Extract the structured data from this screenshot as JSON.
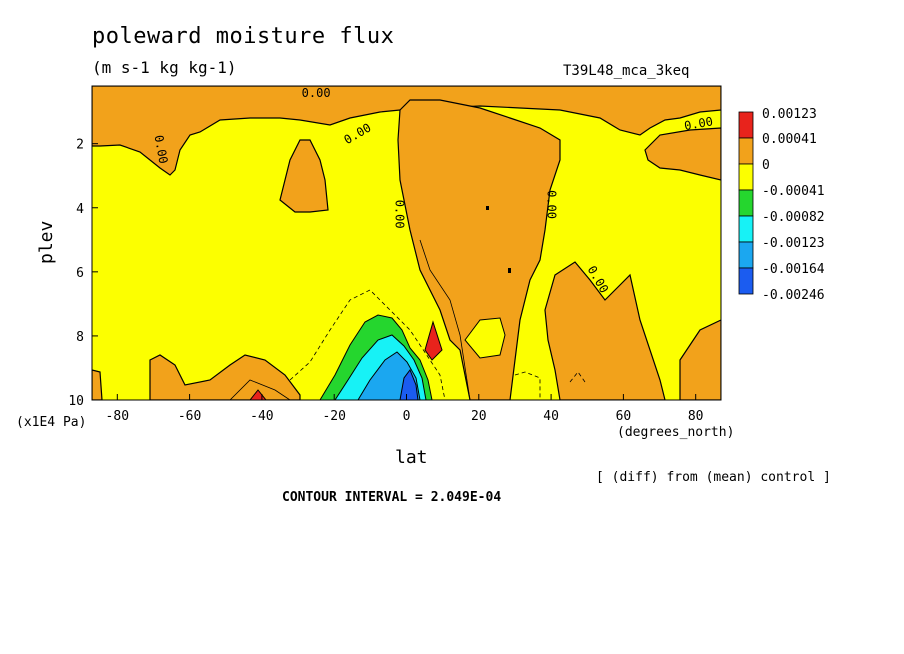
{
  "chart_data": {
    "type": "contour",
    "title": "poleward moisture flux",
    "units": "(m s-1 kg kg-1)",
    "experiment": "T39L48_mca_3keq",
    "xlabel": "lat",
    "x_units": "(degrees_north)",
    "ylabel": "plev",
    "y_units": "(x1E4 Pa)",
    "xlim": [
      -87,
      87
    ],
    "ylim": [
      10,
      0.2
    ],
    "x_ticks": [
      -80,
      -60,
      -40,
      -20,
      0,
      20,
      40,
      60,
      80
    ],
    "y_ticks": [
      2,
      4,
      6,
      8,
      10
    ],
    "contour_label": "0.00",
    "note": "[ (diff) from (mean) control ]",
    "contour_interval": "CONTOUR INTERVAL = 2.049E-04",
    "colorbar": [
      {
        "label": "0.00123",
        "color": "#e8231c"
      },
      {
        "label": "0.00041",
        "color": "#f2a21b"
      },
      {
        "label": "0",
        "color": "#fcff00"
      },
      {
        "label": "-0.00041",
        "color": "#25d62e"
      },
      {
        "label": "-0.00082",
        "color": "#17f2f6"
      },
      {
        "label": "-0.00123",
        "color": "#1ba7f0"
      },
      {
        "label": "-0.00164",
        "color": "#1b5cf0"
      },
      {
        "label": "-0.00246",
        "color": "#1b5cf0"
      }
    ]
  }
}
